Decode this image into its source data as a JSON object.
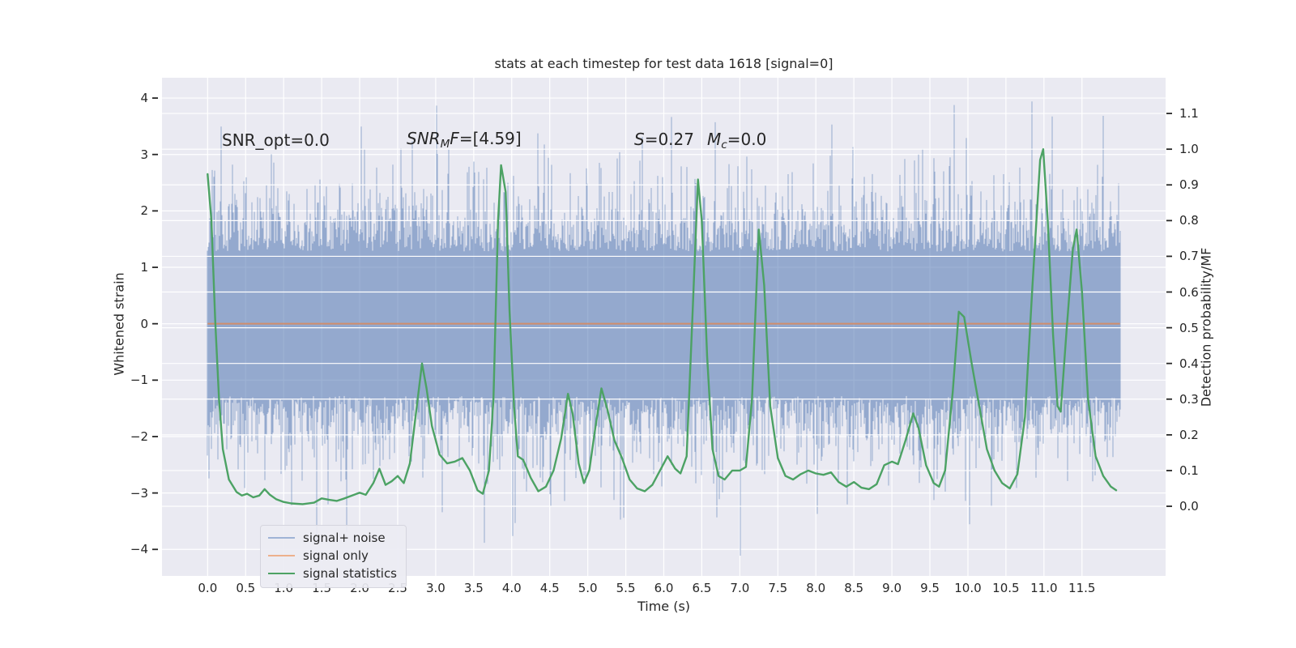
{
  "title": "stats at each timestep for test data 1618 [signal=0]",
  "annotations": {
    "snr_opt": "SNR_opt=0.0",
    "snr_mf": {
      "base": "SNR",
      "sub": "M",
      "base2": "F",
      "rest": "=[4.59]"
    },
    "s_stat": {
      "base": "S",
      "rest": "=0.27"
    },
    "m_c": {
      "base": "M",
      "sub": "c",
      "rest": "=0.0"
    }
  },
  "axes": {
    "x": {
      "label": "Time (s)",
      "lim": [
        -0.6,
        12.6
      ],
      "ticks": [
        {
          "v": 0.0,
          "label": "0.0"
        },
        {
          "v": 0.5,
          "label": "0.5"
        },
        {
          "v": 1.0,
          "label": "1.0"
        },
        {
          "v": 1.5,
          "label": "1.5"
        },
        {
          "v": 2.0,
          "label": "2.0"
        },
        {
          "v": 2.5,
          "label": "2.5"
        },
        {
          "v": 3.0,
          "label": "3.0"
        },
        {
          "v": 3.5,
          "label": "3.5"
        },
        {
          "v": 4.0,
          "label": "4.0"
        },
        {
          "v": 4.5,
          "label": "4.5"
        },
        {
          "v": 5.0,
          "label": "5.0"
        },
        {
          "v": 5.5,
          "label": "5.5"
        },
        {
          "v": 6.0,
          "label": "6.0"
        },
        {
          "v": 6.5,
          "label": "6.5"
        },
        {
          "v": 7.0,
          "label": "7.0"
        },
        {
          "v": 7.5,
          "label": "7.5"
        },
        {
          "v": 8.0,
          "label": "8.0"
        },
        {
          "v": 8.5,
          "label": "8.5"
        },
        {
          "v": 9.0,
          "label": "9.0"
        },
        {
          "v": 9.5,
          "label": "9.5"
        },
        {
          "v": 10.0,
          "label": "10.0"
        },
        {
          "v": 10.5,
          "label": "10.5"
        },
        {
          "v": 11.0,
          "label": "11.0"
        },
        {
          "v": 11.5,
          "label": "11.5"
        }
      ]
    },
    "y_left": {
      "label": "Whitened strain",
      "lim": [
        -4.47,
        4.36
      ],
      "ticks": [
        {
          "v": 4,
          "label": "4"
        },
        {
          "v": 3,
          "label": "3"
        },
        {
          "v": 2,
          "label": "2"
        },
        {
          "v": 1,
          "label": "1"
        },
        {
          "v": 0,
          "label": "0"
        },
        {
          "v": -1,
          "label": "−1"
        },
        {
          "v": -2,
          "label": "−2"
        },
        {
          "v": -3,
          "label": "−3"
        },
        {
          "v": -4,
          "label": "−4"
        }
      ]
    },
    "y_right": {
      "label": "Detection probability/MF",
      "lim": [
        -0.195,
        1.2
      ],
      "ticks": [
        {
          "v": 1.1,
          "label": "1.1"
        },
        {
          "v": 1.0,
          "label": "1.0"
        },
        {
          "v": 0.9,
          "label": "0.9"
        },
        {
          "v": 0.8,
          "label": "0.8"
        },
        {
          "v": 0.7,
          "label": "0.7"
        },
        {
          "v": 0.6,
          "label": "0.6"
        },
        {
          "v": 0.5,
          "label": "0.5"
        },
        {
          "v": 0.4,
          "label": "0.4"
        },
        {
          "v": 0.3,
          "label": "0.3"
        },
        {
          "v": 0.2,
          "label": "0.2"
        },
        {
          "v": 0.1,
          "label": "0.1"
        },
        {
          "v": 0.0,
          "label": "0.0"
        }
      ]
    }
  },
  "legend": {
    "items": [
      {
        "label": "signal+ noise",
        "color": "#9fb3d6"
      },
      {
        "label": "signal only",
        "color": "#edb08c"
      },
      {
        "label": "signal statistics",
        "color": "#4da263"
      }
    ]
  },
  "colors": {
    "figure_bg": "#ffffff",
    "plot_bg": "#eaeaf2",
    "grid": "#ffffff",
    "noise_rgba": "rgba(76,114,176,0.55)",
    "signal_only": "#dd8452",
    "signal_stats": "#4ca264",
    "text": "#262626",
    "tick_mark": "#262626"
  },
  "chart_data": {
    "type": "line",
    "title": "stats at each timestep for test data 1618 [signal=0]",
    "xlabel": "Time (s)",
    "ylabel_left": "Whitened strain",
    "ylabel_right": "Detection probability/MF",
    "xlim": [
      -0.6,
      12.6
    ],
    "ylim_left": [
      -4.47,
      4.36
    ],
    "ylim_right": [
      -0.195,
      1.2
    ],
    "grid": true,
    "legend_position": "lower left",
    "series": [
      {
        "name": "signal+ noise",
        "axis": "left",
        "style": "noise",
        "x_start": 0.0,
        "x_end": 12.0,
        "core_amplitude": 1.28,
        "spike_scale": 0.5,
        "max_up": 4.0,
        "max_down": 4.15,
        "seed": 1618
      },
      {
        "name": "signal only",
        "axis": "left",
        "style": "constant",
        "value": 0.0,
        "x_start": 0.0,
        "x_end": 12.0
      },
      {
        "name": "signal statistics",
        "axis": "right",
        "style": "line",
        "points": [
          [
            0.0,
            0.93
          ],
          [
            0.05,
            0.8
          ],
          [
            0.1,
            0.52
          ],
          [
            0.15,
            0.3
          ],
          [
            0.2,
            0.16
          ],
          [
            0.28,
            0.075
          ],
          [
            0.38,
            0.04
          ],
          [
            0.45,
            0.03
          ],
          [
            0.52,
            0.035
          ],
          [
            0.6,
            0.025
          ],
          [
            0.68,
            0.03
          ],
          [
            0.75,
            0.048
          ],
          [
            0.82,
            0.032
          ],
          [
            0.9,
            0.02
          ],
          [
            1.0,
            0.012
          ],
          [
            1.1,
            0.008
          ],
          [
            1.25,
            0.006
          ],
          [
            1.4,
            0.01
          ],
          [
            1.5,
            0.022
          ],
          [
            1.6,
            0.018
          ],
          [
            1.7,
            0.015
          ],
          [
            1.8,
            0.022
          ],
          [
            1.9,
            0.03
          ],
          [
            2.0,
            0.038
          ],
          [
            2.08,
            0.032
          ],
          [
            2.18,
            0.065
          ],
          [
            2.26,
            0.105
          ],
          [
            2.34,
            0.06
          ],
          [
            2.42,
            0.07
          ],
          [
            2.5,
            0.085
          ],
          [
            2.58,
            0.065
          ],
          [
            2.66,
            0.12
          ],
          [
            2.74,
            0.26
          ],
          [
            2.82,
            0.4
          ],
          [
            2.88,
            0.33
          ],
          [
            2.95,
            0.225
          ],
          [
            3.05,
            0.145
          ],
          [
            3.15,
            0.12
          ],
          [
            3.25,
            0.125
          ],
          [
            3.35,
            0.135
          ],
          [
            3.45,
            0.1
          ],
          [
            3.55,
            0.045
          ],
          [
            3.62,
            0.035
          ],
          [
            3.7,
            0.1
          ],
          [
            3.76,
            0.3
          ],
          [
            3.82,
            0.8
          ],
          [
            3.86,
            0.955
          ],
          [
            3.92,
            0.88
          ],
          [
            3.97,
            0.55
          ],
          [
            4.03,
            0.28
          ],
          [
            4.08,
            0.14
          ],
          [
            4.15,
            0.13
          ],
          [
            4.25,
            0.08
          ],
          [
            4.35,
            0.042
          ],
          [
            4.45,
            0.055
          ],
          [
            4.55,
            0.1
          ],
          [
            4.65,
            0.19
          ],
          [
            4.74,
            0.315
          ],
          [
            4.8,
            0.26
          ],
          [
            4.88,
            0.12
          ],
          [
            4.95,
            0.065
          ],
          [
            5.02,
            0.1
          ],
          [
            5.1,
            0.22
          ],
          [
            5.18,
            0.33
          ],
          [
            5.26,
            0.27
          ],
          [
            5.35,
            0.185
          ],
          [
            5.45,
            0.135
          ],
          [
            5.55,
            0.075
          ],
          [
            5.65,
            0.05
          ],
          [
            5.75,
            0.042
          ],
          [
            5.85,
            0.06
          ],
          [
            5.95,
            0.1
          ],
          [
            6.05,
            0.14
          ],
          [
            6.15,
            0.105
          ],
          [
            6.22,
            0.092
          ],
          [
            6.3,
            0.14
          ],
          [
            6.38,
            0.55
          ],
          [
            6.45,
            0.915
          ],
          [
            6.5,
            0.8
          ],
          [
            6.57,
            0.42
          ],
          [
            6.64,
            0.16
          ],
          [
            6.72,
            0.085
          ],
          [
            6.8,
            0.075
          ],
          [
            6.9,
            0.1
          ],
          [
            7.0,
            0.1
          ],
          [
            7.08,
            0.11
          ],
          [
            7.16,
            0.3
          ],
          [
            7.25,
            0.775
          ],
          [
            7.32,
            0.62
          ],
          [
            7.4,
            0.28
          ],
          [
            7.5,
            0.135
          ],
          [
            7.6,
            0.085
          ],
          [
            7.7,
            0.075
          ],
          [
            7.8,
            0.09
          ],
          [
            7.9,
            0.1
          ],
          [
            8.0,
            0.092
          ],
          [
            8.1,
            0.088
          ],
          [
            8.2,
            0.095
          ],
          [
            8.3,
            0.068
          ],
          [
            8.4,
            0.055
          ],
          [
            8.5,
            0.068
          ],
          [
            8.6,
            0.052
          ],
          [
            8.7,
            0.048
          ],
          [
            8.8,
            0.062
          ],
          [
            8.9,
            0.115
          ],
          [
            9.0,
            0.125
          ],
          [
            9.08,
            0.118
          ],
          [
            9.18,
            0.185
          ],
          [
            9.28,
            0.26
          ],
          [
            9.35,
            0.22
          ],
          [
            9.45,
            0.115
          ],
          [
            9.55,
            0.065
          ],
          [
            9.62,
            0.055
          ],
          [
            9.7,
            0.1
          ],
          [
            9.8,
            0.32
          ],
          [
            9.88,
            0.545
          ],
          [
            9.95,
            0.53
          ],
          [
            10.05,
            0.4
          ],
          [
            10.15,
            0.28
          ],
          [
            10.25,
            0.16
          ],
          [
            10.35,
            0.1
          ],
          [
            10.45,
            0.065
          ],
          [
            10.55,
            0.05
          ],
          [
            10.65,
            0.09
          ],
          [
            10.75,
            0.25
          ],
          [
            10.85,
            0.62
          ],
          [
            10.95,
            0.97
          ],
          [
            10.99,
            1.0
          ],
          [
            11.05,
            0.8
          ],
          [
            11.12,
            0.48
          ],
          [
            11.18,
            0.28
          ],
          [
            11.22,
            0.265
          ],
          [
            11.3,
            0.5
          ],
          [
            11.38,
            0.72
          ],
          [
            11.43,
            0.775
          ],
          [
            11.5,
            0.6
          ],
          [
            11.58,
            0.3
          ],
          [
            11.68,
            0.14
          ],
          [
            11.78,
            0.085
          ],
          [
            11.88,
            0.055
          ],
          [
            11.95,
            0.045
          ]
        ]
      }
    ]
  }
}
